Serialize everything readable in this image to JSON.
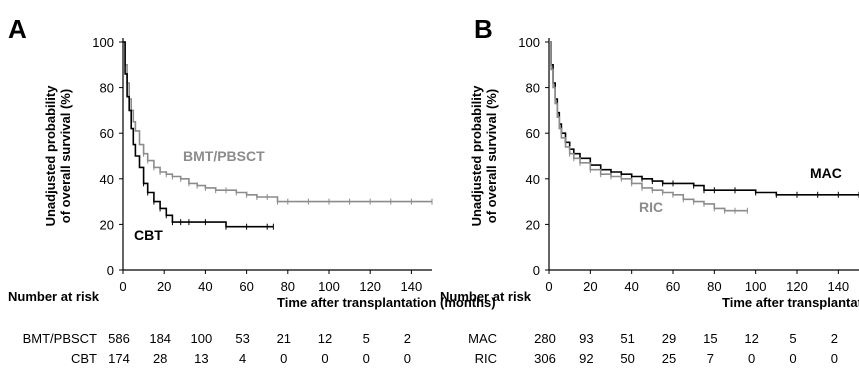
{
  "chart_data": [
    {
      "type": "line",
      "panel": "A",
      "xlabel": "Time after transplantation  (months)",
      "ylabel_line1": "Unadjusted probability",
      "ylabel_line2": "of overall survival (%)",
      "xlim": [
        0,
        150
      ],
      "ylim": [
        0,
        100
      ],
      "xticks": [
        0,
        20,
        40,
        60,
        80,
        100,
        120,
        140
      ],
      "yticks": [
        0,
        20,
        40,
        60,
        80,
        100
      ],
      "grid": false,
      "series": [
        {
          "name": "BMT/PBSCT",
          "color": "#8c8c8c",
          "x": [
            0,
            1,
            2,
            3,
            4,
            5,
            6,
            8,
            10,
            12,
            15,
            18,
            21,
            24,
            28,
            32,
            36,
            40,
            45,
            50,
            55,
            60,
            65,
            70,
            75,
            80,
            90,
            100,
            110,
            120,
            130,
            140,
            150
          ],
          "y": [
            100,
            90,
            82,
            75,
            70,
            65,
            61,
            55,
            51,
            48,
            45,
            43,
            42,
            41,
            40,
            38,
            37,
            36,
            35,
            35,
            34,
            33,
            32,
            32,
            30,
            30,
            30,
            30,
            30,
            30,
            30,
            30,
            30
          ]
        },
        {
          "name": "CBT",
          "color": "#000000",
          "x": [
            0,
            1,
            2,
            3,
            4,
            5,
            6,
            8,
            10,
            12,
            15,
            18,
            21,
            24,
            28,
            32,
            40,
            50,
            60,
            70,
            73
          ],
          "y": [
            100,
            86,
            76,
            70,
            62,
            55,
            50,
            45,
            38,
            34,
            30,
            27,
            24,
            21,
            21,
            21,
            21,
            19,
            19,
            19,
            19
          ]
        }
      ],
      "risk_table": {
        "title": "Number at risk",
        "times": [
          0,
          20,
          40,
          60,
          80,
          100,
          120,
          140
        ],
        "rows": [
          {
            "label": "BMT/PBSCT",
            "counts": [
              "586",
              "184",
              "100",
              "53",
              "21",
              "12",
              "5",
              "2"
            ]
          },
          {
            "label": "CBT",
            "counts": [
              "174",
              "28",
              "13",
              "4",
              "0",
              "0",
              "0",
              "0"
            ]
          }
        ]
      }
    },
    {
      "type": "line",
      "panel": "B",
      "xlabel": "Time after transplantation  (months)",
      "ylabel_line1": "Unadjusted probability",
      "ylabel_line2": "of overall survival (%)",
      "xlim": [
        0,
        150
      ],
      "ylim": [
        0,
        100
      ],
      "xticks": [
        0,
        20,
        40,
        60,
        80,
        100,
        120,
        140
      ],
      "yticks": [
        0,
        20,
        40,
        60,
        80,
        100
      ],
      "grid": false,
      "series": [
        {
          "name": "MAC",
          "color": "#000000",
          "x": [
            0,
            1,
            2,
            3,
            4,
            5,
            6,
            8,
            10,
            12,
            15,
            20,
            25,
            30,
            35,
            40,
            45,
            50,
            55,
            60,
            70,
            75,
            80,
            90,
            100,
            110,
            120,
            130,
            140,
            150
          ],
          "y": [
            100,
            90,
            82,
            75,
            69,
            64,
            60,
            56,
            53,
            51,
            49,
            46,
            44,
            43,
            42,
            41,
            40,
            39,
            38,
            38,
            37,
            35,
            35,
            35,
            34,
            33,
            33,
            33,
            33,
            33
          ]
        },
        {
          "name": "RIC",
          "color": "#8c8c8c",
          "x": [
            0,
            1,
            2,
            3,
            4,
            5,
            6,
            8,
            10,
            12,
            15,
            20,
            25,
            30,
            35,
            40,
            45,
            50,
            55,
            60,
            65,
            70,
            75,
            80,
            85,
            90,
            96
          ],
          "y": [
            100,
            88,
            80,
            73,
            67,
            62,
            58,
            54,
            51,
            49,
            47,
            44,
            42,
            41,
            40,
            38,
            36,
            35,
            34,
            33,
            31,
            30,
            29,
            27,
            26,
            26,
            26
          ]
        }
      ],
      "risk_table": {
        "title": "Number at risk",
        "times": [
          0,
          20,
          40,
          60,
          80,
          100,
          120,
          140
        ],
        "rows": [
          {
            "label": "MAC",
            "counts": [
              "280",
              "93",
              "51",
              "29",
              "15",
              "12",
              "5",
              "2"
            ]
          },
          {
            "label": "RIC",
            "counts": [
              "306",
              "92",
              "50",
              "25",
              "7",
              "0",
              "0",
              "0"
            ]
          }
        ]
      }
    }
  ]
}
